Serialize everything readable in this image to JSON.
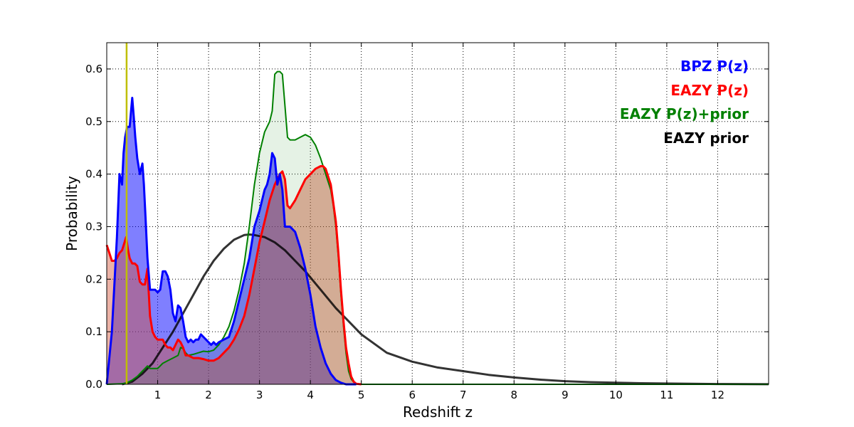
{
  "chart_data": {
    "type": "area",
    "xlabel": "Redshift z",
    "ylabel": "Probability",
    "xlim": [
      0,
      13
    ],
    "ylim": [
      0,
      0.65
    ],
    "x_ticks": [
      1,
      2,
      3,
      4,
      5,
      6,
      7,
      8,
      9,
      10,
      11,
      12
    ],
    "y_ticks": [
      0.0,
      0.1,
      0.2,
      0.3,
      0.4,
      0.5,
      0.6
    ],
    "y_tick_labels": [
      "0.0",
      "0.1",
      "0.2",
      "0.3",
      "0.4",
      "0.5",
      "0.6"
    ],
    "grid": true,
    "legend_position": "top-right",
    "vertical_line": {
      "x": 0.39,
      "color": "#bfbf00"
    },
    "series": [
      {
        "name": "BPZ P(z)",
        "color": "#0000ff",
        "fill": "#0000ff",
        "fill_opacity": 0.5,
        "x": [
          0.0,
          0.1,
          0.2,
          0.25,
          0.3,
          0.33,
          0.36,
          0.4,
          0.45,
          0.5,
          0.53,
          0.56,
          0.6,
          0.65,
          0.7,
          0.73,
          0.76,
          0.8,
          0.85,
          0.9,
          0.95,
          1.0,
          1.05,
          1.1,
          1.15,
          1.2,
          1.25,
          1.3,
          1.35,
          1.4,
          1.45,
          1.5,
          1.55,
          1.6,
          1.65,
          1.7,
          1.75,
          1.8,
          1.85,
          1.9,
          1.95,
          2.0,
          2.05,
          2.1,
          2.15,
          2.2,
          2.3,
          2.4,
          2.5,
          2.6,
          2.7,
          2.8,
          2.9,
          3.0,
          3.1,
          3.15,
          3.2,
          3.25,
          3.3,
          3.35,
          3.4,
          3.45,
          3.5,
          3.55,
          3.6,
          3.7,
          3.8,
          3.9,
          4.0,
          4.1,
          4.2,
          4.3,
          4.4,
          4.5,
          4.6,
          4.7,
          4.8,
          4.9
        ],
        "values": [
          0.0,
          0.1,
          0.28,
          0.4,
          0.38,
          0.44,
          0.47,
          0.49,
          0.49,
          0.545,
          0.51,
          0.47,
          0.43,
          0.4,
          0.42,
          0.38,
          0.32,
          0.24,
          0.18,
          0.18,
          0.18,
          0.175,
          0.18,
          0.215,
          0.215,
          0.205,
          0.18,
          0.135,
          0.12,
          0.15,
          0.145,
          0.12,
          0.09,
          0.08,
          0.085,
          0.08,
          0.085,
          0.085,
          0.095,
          0.09,
          0.085,
          0.08,
          0.075,
          0.08,
          0.075,
          0.08,
          0.085,
          0.09,
          0.12,
          0.16,
          0.2,
          0.24,
          0.3,
          0.33,
          0.37,
          0.38,
          0.4,
          0.44,
          0.43,
          0.38,
          0.4,
          0.37,
          0.3,
          0.3,
          0.3,
          0.29,
          0.26,
          0.22,
          0.17,
          0.11,
          0.07,
          0.04,
          0.02,
          0.008,
          0.003,
          0.0,
          0.0,
          0.0
        ]
      },
      {
        "name": "EAZY P(z)",
        "color": "#ff0000",
        "fill": "#d2553a",
        "fill_opacity": 0.45,
        "x": [
          0.0,
          0.05,
          0.1,
          0.15,
          0.2,
          0.25,
          0.3,
          0.35,
          0.38,
          0.42,
          0.45,
          0.5,
          0.55,
          0.6,
          0.65,
          0.7,
          0.75,
          0.8,
          0.85,
          0.9,
          0.95,
          1.0,
          1.05,
          1.1,
          1.15,
          1.2,
          1.25,
          1.3,
          1.35,
          1.4,
          1.45,
          1.5,
          1.55,
          1.6,
          1.7,
          1.8,
          1.9,
          2.0,
          2.1,
          2.2,
          2.3,
          2.4,
          2.5,
          2.6,
          2.7,
          2.8,
          2.9,
          3.0,
          3.1,
          3.2,
          3.3,
          3.4,
          3.45,
          3.5,
          3.55,
          3.6,
          3.7,
          3.8,
          3.9,
          4.0,
          4.1,
          4.2,
          4.25,
          4.3,
          4.4,
          4.5,
          4.55,
          4.6,
          4.65,
          4.7,
          4.75,
          4.8,
          4.85,
          4.9,
          5.0
        ],
        "values": [
          0.265,
          0.25,
          0.235,
          0.235,
          0.24,
          0.25,
          0.255,
          0.27,
          0.28,
          0.255,
          0.24,
          0.23,
          0.23,
          0.225,
          0.195,
          0.19,
          0.19,
          0.22,
          0.13,
          0.1,
          0.09,
          0.085,
          0.085,
          0.085,
          0.075,
          0.07,
          0.07,
          0.065,
          0.075,
          0.085,
          0.08,
          0.07,
          0.055,
          0.055,
          0.05,
          0.05,
          0.048,
          0.045,
          0.045,
          0.05,
          0.06,
          0.07,
          0.085,
          0.105,
          0.13,
          0.17,
          0.22,
          0.27,
          0.31,
          0.35,
          0.38,
          0.4,
          0.405,
          0.39,
          0.34,
          0.335,
          0.35,
          0.37,
          0.39,
          0.4,
          0.41,
          0.415,
          0.415,
          0.41,
          0.38,
          0.31,
          0.25,
          0.18,
          0.12,
          0.07,
          0.04,
          0.015,
          0.005,
          0.001,
          0.0
        ]
      },
      {
        "name": "EAZY P(z)+prior",
        "color": "#008000",
        "fill": "#008000",
        "fill_opacity": 0.1,
        "x": [
          0.0,
          0.3,
          0.4,
          0.5,
          0.6,
          0.7,
          0.75,
          0.8,
          0.85,
          0.9,
          1.0,
          1.1,
          1.2,
          1.3,
          1.4,
          1.45,
          1.5,
          1.55,
          1.6,
          1.7,
          1.8,
          1.9,
          2.0,
          2.1,
          2.2,
          2.3,
          2.4,
          2.5,
          2.6,
          2.7,
          2.8,
          2.9,
          3.0,
          3.1,
          3.2,
          3.25,
          3.3,
          3.35,
          3.4,
          3.45,
          3.5,
          3.55,
          3.6,
          3.7,
          3.8,
          3.9,
          4.0,
          4.1,
          4.2,
          4.3,
          4.4,
          4.45,
          4.5,
          4.55,
          4.6,
          4.65,
          4.7,
          4.75,
          4.8,
          4.85,
          4.9,
          5.0,
          13.0
        ],
        "values": [
          0.0,
          0.001,
          0.003,
          0.008,
          0.015,
          0.025,
          0.03,
          0.035,
          0.03,
          0.03,
          0.03,
          0.04,
          0.045,
          0.05,
          0.055,
          0.07,
          0.068,
          0.06,
          0.055,
          0.057,
          0.06,
          0.063,
          0.062,
          0.065,
          0.075,
          0.09,
          0.11,
          0.14,
          0.18,
          0.23,
          0.3,
          0.38,
          0.44,
          0.48,
          0.5,
          0.52,
          0.59,
          0.595,
          0.595,
          0.59,
          0.53,
          0.47,
          0.465,
          0.465,
          0.47,
          0.475,
          0.47,
          0.455,
          0.43,
          0.4,
          0.37,
          0.34,
          0.3,
          0.24,
          0.17,
          0.11,
          0.06,
          0.025,
          0.01,
          0.004,
          0.001,
          0.0,
          0.0
        ]
      },
      {
        "name": "EAZY prior",
        "color": "#000000",
        "x": [
          0.3,
          0.5,
          0.7,
          0.9,
          1.1,
          1.3,
          1.5,
          1.7,
          1.9,
          2.1,
          2.3,
          2.5,
          2.7,
          2.8,
          2.9,
          3.1,
          3.3,
          3.5,
          3.7,
          3.9,
          4.2,
          4.5,
          4.8,
          5.0,
          5.5,
          6.0,
          6.5,
          7.0,
          7.5,
          8.0,
          8.5,
          9.0,
          9.5,
          10.0,
          10.5,
          11.0,
          12.0,
          13.0
        ],
        "values": [
          0.0,
          0.005,
          0.02,
          0.04,
          0.07,
          0.1,
          0.135,
          0.17,
          0.205,
          0.235,
          0.258,
          0.275,
          0.284,
          0.285,
          0.284,
          0.28,
          0.27,
          0.255,
          0.235,
          0.215,
          0.18,
          0.145,
          0.115,
          0.095,
          0.06,
          0.043,
          0.032,
          0.025,
          0.018,
          0.013,
          0.009,
          0.006,
          0.004,
          0.003,
          0.002,
          0.0015,
          0.0005,
          0.0002
        ]
      }
    ]
  }
}
